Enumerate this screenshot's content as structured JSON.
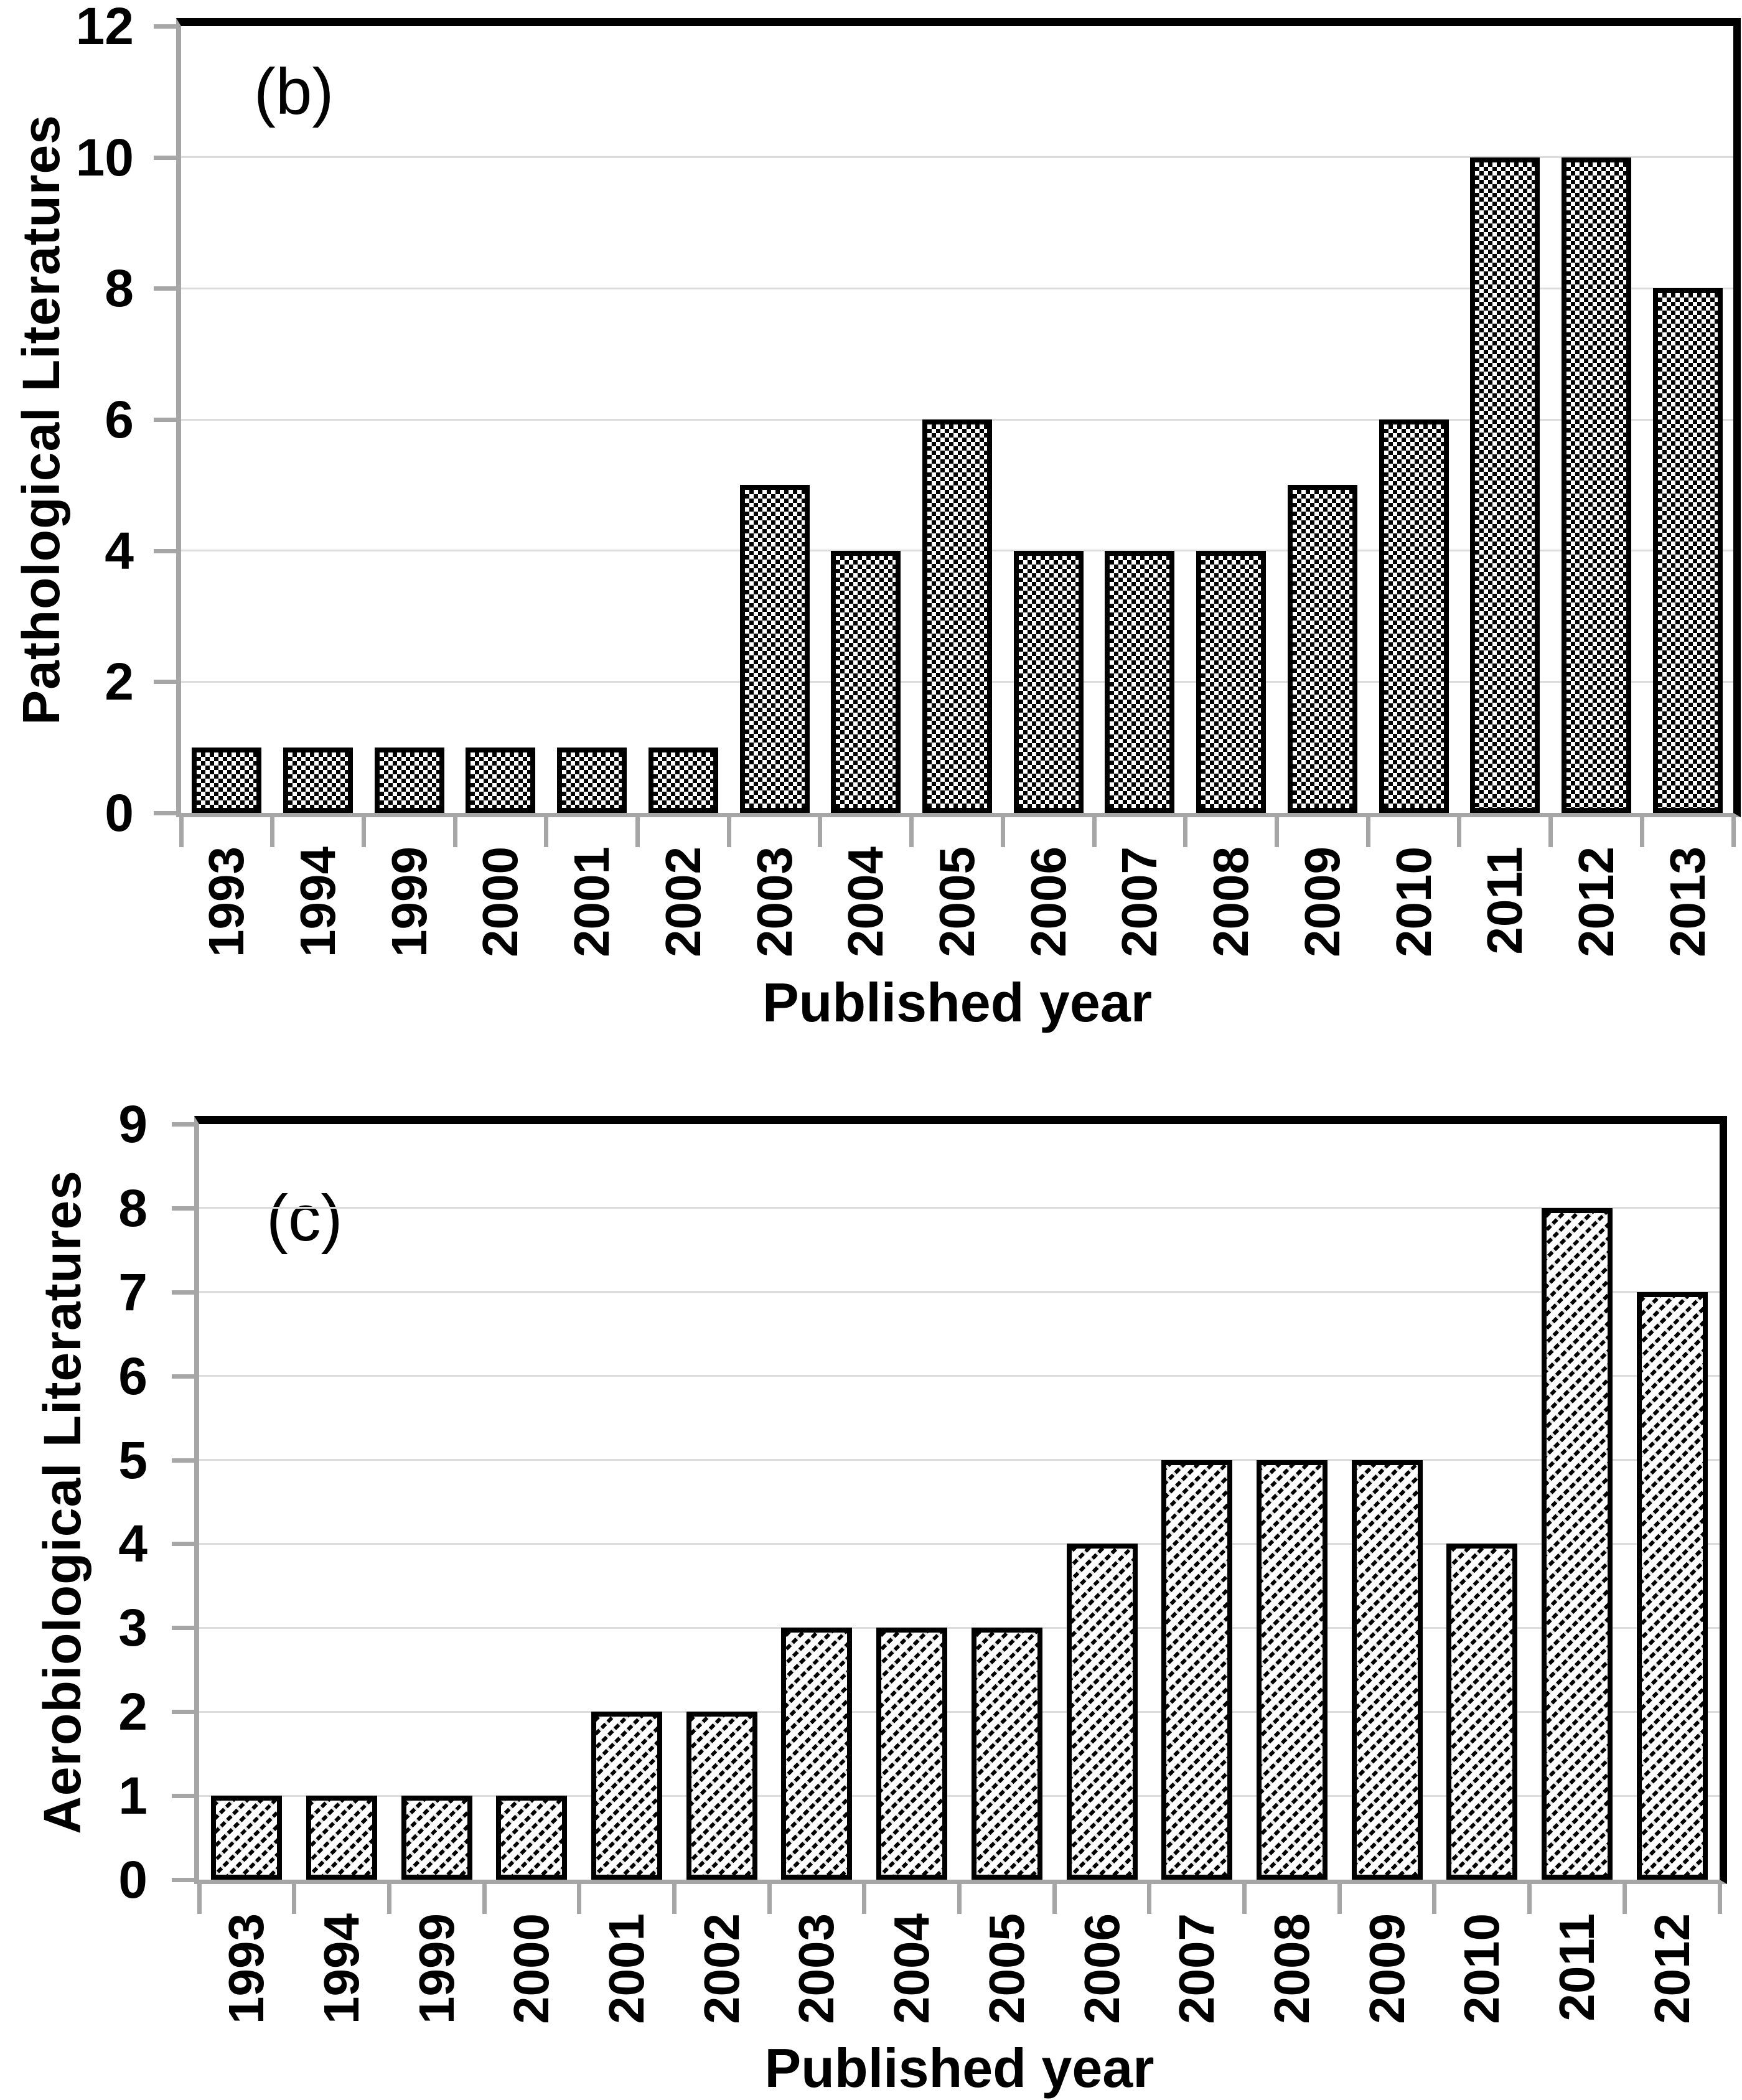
{
  "chart_data": [
    {
      "type": "bar",
      "panel_label": "(b)",
      "ylabel": "Pathological Literatures",
      "xlabel": "Published year",
      "categories": [
        "1993",
        "1994",
        "1999",
        "2000",
        "2001",
        "2002",
        "2003",
        "2004",
        "2005",
        "2006",
        "2007",
        "2008",
        "2009",
        "2010",
        "2011",
        "2012",
        "2013"
      ],
      "values": [
        1,
        1,
        1,
        1,
        1,
        1,
        5,
        4,
        6,
        4,
        4,
        4,
        5,
        6,
        10,
        10,
        8
      ],
      "ylim": [
        0,
        12
      ],
      "ytick_step": 2,
      "ytick_labels": [
        "0",
        "2",
        "4",
        "6",
        "8",
        "10",
        "12"
      ],
      "grid": true,
      "legend": "none",
      "bar_pattern": "checkerboard",
      "colors": {
        "bar_border": "#000000",
        "plot_border": "#000000",
        "axis": "#a6a6a6",
        "gridline": "#dcdcdc"
      }
    },
    {
      "type": "bar",
      "panel_label": "(c)",
      "ylabel": "Aerobiological Literatures",
      "xlabel": "Published year",
      "categories": [
        "1993",
        "1994",
        "1999",
        "2000",
        "2001",
        "2002",
        "2003",
        "2004",
        "2005",
        "2006",
        "2007",
        "2008",
        "2009",
        "2010",
        "2011",
        "2012"
      ],
      "values": [
        1,
        1,
        1,
        1,
        2,
        2,
        3,
        3,
        3,
        4,
        5,
        5,
        5,
        4,
        8,
        7
      ],
      "ylim": [
        0,
        9
      ],
      "ytick_step": 1,
      "ytick_labels": [
        "0",
        "1",
        "2",
        "3",
        "4",
        "5",
        "6",
        "7",
        "8",
        "9"
      ],
      "grid": true,
      "legend": "none",
      "bar_pattern": "diagonal-hatch",
      "colors": {
        "bar_border": "#000000",
        "plot_border": "#000000",
        "axis": "#a6a6a6",
        "gridline": "#dcdcdc"
      }
    }
  ]
}
